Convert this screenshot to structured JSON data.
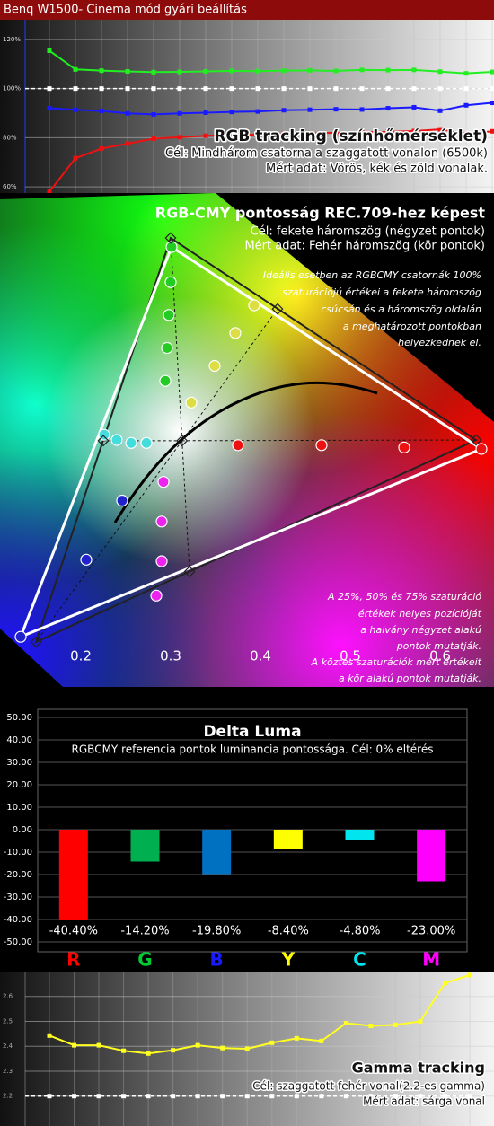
{
  "header": {
    "title": "Benq W1500- Cinema mód gyári beállítás"
  },
  "chart_data": [
    {
      "type": "line",
      "title": "RGB tracking (színhőmérséklet)",
      "notes": [
        "Cél: Mindhárom csatorna a szaggatott vonalon (6500k)",
        "Mért adat: Vörös, kék és zöld vonalak."
      ],
      "categories": [
        null,
        null,
        null,
        null,
        null,
        null,
        null,
        null,
        null,
        null,
        null,
        null,
        null,
        null,
        null,
        null,
        null,
        null
      ],
      "series": [
        {
          "color": "#22ee22",
          "values": [
            115.4,
            107.8,
            107.3,
            107.0,
            106.7,
            106.8,
            107.0,
            107.2,
            107.1,
            107.3,
            107.4,
            107.2,
            107.6,
            107.5,
            107.6,
            106.9,
            106.2,
            106.8
          ]
        },
        {
          "color": "#1a1aff",
          "values": [
            92.0,
            91.4,
            90.9,
            89.9,
            89.5,
            89.9,
            90.2,
            90.5,
            90.7,
            91.2,
            91.4,
            91.6,
            91.5,
            92.0,
            92.4,
            91.0,
            93.2,
            94.2
          ]
        },
        {
          "color": "#ee1111",
          "values": [
            58.0,
            71.7,
            75.6,
            77.6,
            79.6,
            80.2,
            80.8,
            81.1,
            81.3,
            81.6,
            81.8,
            82.0,
            82.3,
            82.4,
            82.7,
            83.4,
            81.5,
            82.6
          ]
        }
      ],
      "target": 100,
      "ylim": [
        57.5,
        128
      ],
      "yticks": [
        {
          "value": 60,
          "label": "60%"
        },
        {
          "value": 80,
          "label": "80%"
        },
        {
          "value": 100,
          "label": "100%"
        },
        {
          "value": 120,
          "label": "120%"
        }
      ],
      "grid": true
    },
    {
      "type": "scatter",
      "title": "RGB-CMY pontosság REC.709-hez képest",
      "notes": [
        "Cél: fekete háromszög (négyzet pontok)",
        "Mért adat: Fehér háromszög (kör pontok)"
      ],
      "annotations": [
        [
          "Ideális esetben az RGBCMY csatornák 100%",
          "szaturációjú értékei a fekete háromszög",
          "csúcsán  és a háromszög oldalán",
          "a meghatározott pontokban",
          "helyezkednek el."
        ],
        [
          "A 25%, 50% és 75% szaturáció",
          "értékek helyes pozícióját",
          "a halvány négyzet alakú",
          "pontok mutatják.",
          "A köztes szaturációk mért értékeit",
          "a kör alakú pontok mutatják."
        ]
      ],
      "series": [
        {
          "color": "#ee1111",
          "x": [
            0.646,
            0.56,
            0.468,
            0.375
          ],
          "y": [
            0.318,
            0.32,
            0.323,
            0.323
          ]
        },
        {
          "color": "#22cc22",
          "x": [
            0.301,
            0.3,
            0.298,
            0.296,
            0.294
          ],
          "y": [
            0.588,
            0.541,
            0.497,
            0.453,
            0.409
          ]
        },
        {
          "color": "#2222cc",
          "x": [
            0.133,
            0.206,
            0.246
          ],
          "y": [
            0.067,
            0.17,
            0.249
          ]
        },
        {
          "color": "#44dddd",
          "x": [
            0.226,
            0.24,
            0.256,
            0.273
          ],
          "y": [
            0.337,
            0.33,
            0.326,
            0.326
          ]
        },
        {
          "color": "#ee22ee",
          "x": [
            0.284,
            0.29,
            0.29,
            0.292
          ],
          "y": [
            0.122,
            0.168,
            0.221,
            0.274
          ]
        },
        {
          "color": "#dddd44",
          "x": [
            0.393,
            0.372,
            0.349,
            0.323
          ],
          "y": [
            0.51,
            0.473,
            0.429,
            0.38
          ]
        },
        {
          "color": "#222222",
          "marker": "square",
          "x": [
            0.64,
            0.3,
            0.15,
            0.225,
            0.321,
            0.419,
            0.3127
          ],
          "y": [
            0.33,
            0.6,
            0.06,
            0.329,
            0.154,
            0.505,
            0.329
          ]
        }
      ],
      "xlim": [
        0.11,
        0.66
      ],
      "ylim": [
        0,
        0.66
      ],
      "xticks": [
        0.2,
        0.3,
        0.4,
        0.5,
        0.6
      ]
    },
    {
      "type": "bar",
      "title": "Delta Luma",
      "subtitle": "RGBCMY referencia pontok luminancia pontossága. Cél: 0% eltérés",
      "categories": [
        "R",
        "G",
        "B",
        "Y",
        "C",
        "M"
      ],
      "values": [
        -40.4,
        -14.2,
        -19.8,
        -8.4,
        -4.8,
        -23.0
      ],
      "value_labels": [
        "-40.40%",
        "-14.20%",
        "-19.80%",
        "-8.40%",
        "-4.80%",
        "-23.00%"
      ],
      "colors": [
        "#ff0000",
        "#00b050",
        "#0070c0",
        "#ffff00",
        "#00e5ee",
        "#ff00ff"
      ],
      "label_colors": [
        "#ff0000",
        "#00cc33",
        "#1a1aff",
        "#ffff00",
        "#00e5ee",
        "#ff00ff"
      ],
      "ylim": [
        -50,
        50
      ],
      "yticks": [
        {
          "value": -50,
          "label": "-50.00"
        },
        {
          "value": -40,
          "label": "-40.00"
        },
        {
          "value": -30,
          "label": "-30.00"
        },
        {
          "value": -20,
          "label": "-20.00"
        },
        {
          "value": -10,
          "label": "-10.00"
        },
        {
          "value": 0,
          "label": "0.00"
        },
        {
          "value": 10,
          "label": "10.00"
        },
        {
          "value": 20,
          "label": "20.00"
        },
        {
          "value": 30,
          "label": "30.00"
        },
        {
          "value": 40,
          "label": "40.00"
        },
        {
          "value": 50,
          "label": "50.00"
        }
      ],
      "grid": true
    },
    {
      "type": "line",
      "title": "Gamma tracking",
      "notes": [
        "Cél: szaggatott fehér vonal(2.2-es gamma)",
        "Mért adat: sárga vonal"
      ],
      "categories": [
        null,
        null,
        null,
        null,
        null,
        null,
        null,
        null,
        null,
        null,
        null,
        null,
        null,
        null,
        null,
        null,
        null,
        null
      ],
      "series": [
        {
          "color": "#ffff22",
          "values": [
            2.443,
            2.404,
            2.404,
            2.382,
            2.371,
            2.384,
            2.404,
            2.393,
            2.39,
            2.414,
            2.432,
            2.421,
            2.493,
            2.482,
            2.486,
            2.5,
            2.654,
            2.686
          ]
        }
      ],
      "target": 2.2,
      "ylim": [
        2.08,
        2.7
      ],
      "yticks": [
        2.2,
        2.3,
        2.4,
        2.5,
        2.6
      ],
      "grid": true
    }
  ]
}
